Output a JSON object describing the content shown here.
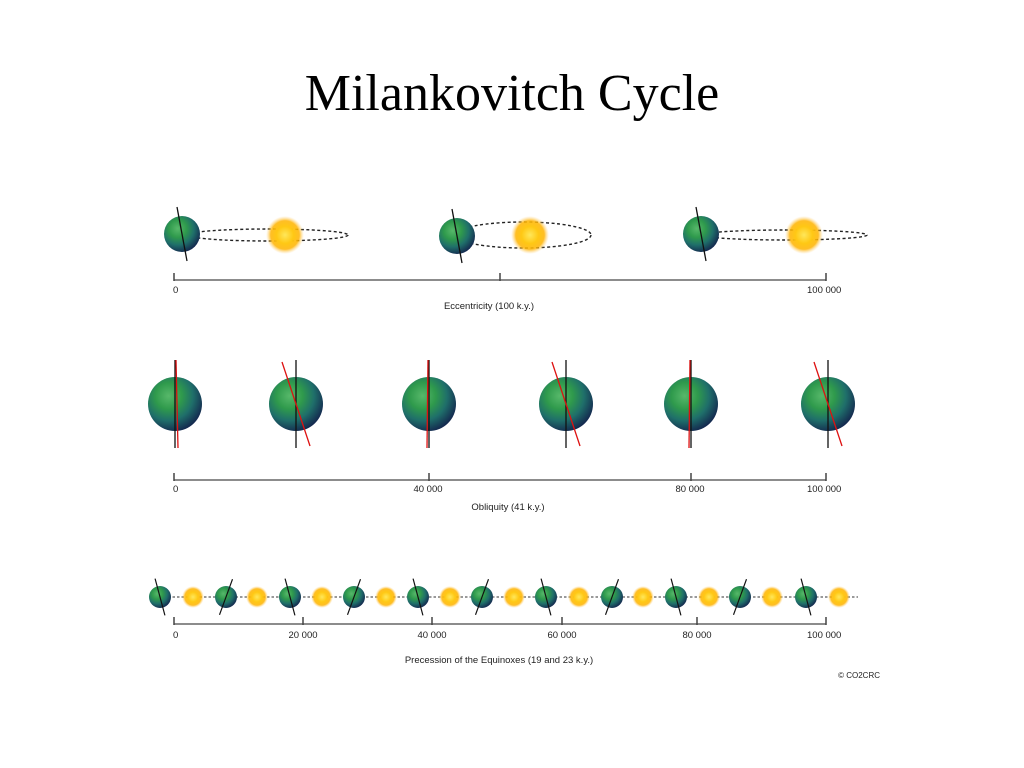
{
  "title": "Milankovitch Cycle",
  "colors": {
    "sun_center": "#ffd21a",
    "sun_glow": "#ffb300",
    "earth_land": "#2f9a4c",
    "earth_ocean": "#1d3d7a",
    "axis_black": "#111111",
    "axis_red": "#dd1111",
    "timeline": "#666666"
  },
  "sections": [
    {
      "id": "eccentricity",
      "label": "Eccentricity (100 k.y.)",
      "ticks": [
        "0",
        "100 000"
      ]
    },
    {
      "id": "obliquity",
      "label": "Obliquity (41 k.y.)",
      "ticks": [
        "0",
        "40 000",
        "80 000",
        "100 000"
      ]
    },
    {
      "id": "precession",
      "label": "Precession of the Equinoxes (19 and 23 k.y.)",
      "ticks": [
        "0",
        "20 000",
        "40 000",
        "60 000",
        "80 000",
        "100 000"
      ]
    }
  ],
  "copyright": "© CO2CRC"
}
